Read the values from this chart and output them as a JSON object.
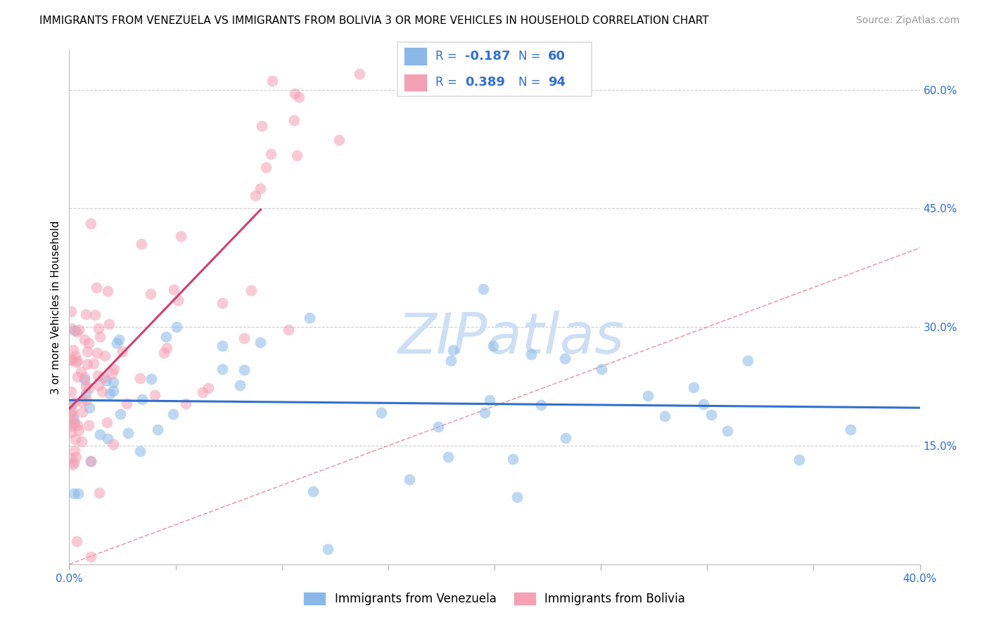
{
  "title": "IMMIGRANTS FROM VENEZUELA VS IMMIGRANTS FROM BOLIVIA 3 OR MORE VEHICLES IN HOUSEHOLD CORRELATION CHART",
  "source": "Source: ZipAtlas.com",
  "ylabel": "3 or more Vehicles in Household",
  "xlim": [
    0.0,
    0.4
  ],
  "ylim": [
    0.0,
    0.65
  ],
  "xtick_positions": [
    0.0,
    0.05,
    0.1,
    0.15,
    0.2,
    0.25,
    0.3,
    0.35,
    0.4
  ],
  "xtick_labels_show": {
    "0.0": "0.0%",
    "0.40": "40.0%"
  },
  "yticks_right": [
    0.15,
    0.3,
    0.45,
    0.6
  ],
  "ytick_right_labels": [
    "15.0%",
    "30.0%",
    "45.0%",
    "60.0%"
  ],
  "grid_color": "#cccccc",
  "legend_R_venezuela": "-0.187",
  "legend_N_venezuela": "60",
  "legend_R_bolivia": "0.389",
  "legend_N_bolivia": "94",
  "color_venezuela": "#8ab8e8",
  "color_bolivia": "#f4a0b5",
  "trend_color_venezuela": "#3070d0",
  "trend_color_bolivia": "#d04070",
  "ref_line_color": "#e8a0b0",
  "watermark_color": "#ccdff5",
  "title_fontsize": 11,
  "source_fontsize": 10,
  "axis_label_fontsize": 11,
  "tick_fontsize": 11
}
